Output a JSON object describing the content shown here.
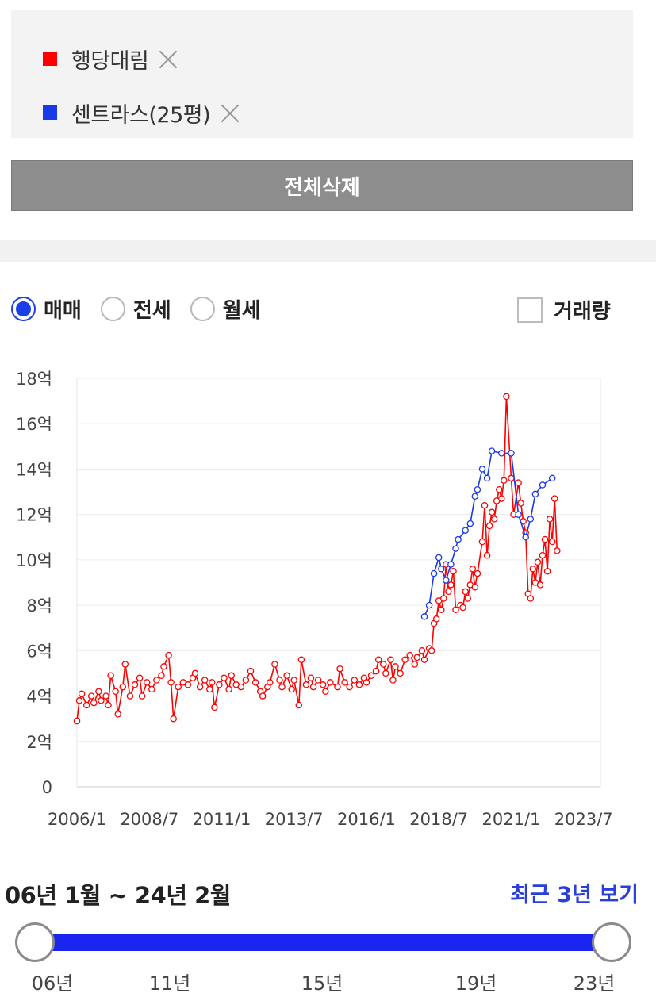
{
  "legend": {
    "items": [
      {
        "label": "행당대림",
        "color": "#ff0000"
      },
      {
        "label": "센트라스(25평)",
        "color": "#1a3ae8"
      }
    ]
  },
  "delete_all_label": "전체삭제",
  "trade_types": [
    {
      "label": "매매",
      "selected": true
    },
    {
      "label": "전세",
      "selected": false
    },
    {
      "label": "월세",
      "selected": false
    }
  ],
  "volume_label": "거래량",
  "volume_checked": false,
  "chart_data": {
    "type": "line",
    "title": "",
    "xlabel": "",
    "ylabel": "",
    "x_range": [
      "2006-01",
      "2024-02"
    ],
    "x_ticks": [
      "2006/1",
      "2008/7",
      "2011/1",
      "2013/7",
      "2016/1",
      "2018/7",
      "2021/1",
      "2023/7"
    ],
    "ylim": [
      0,
      18
    ],
    "y_ticks": [
      "0",
      "2억",
      "4억",
      "6억",
      "8억",
      "10억",
      "12억",
      "14억",
      "16억",
      "18억"
    ],
    "grid": true,
    "series": [
      {
        "name": "행당대림",
        "color": "#ff0000",
        "points": [
          [
            "2006-01",
            2.9
          ],
          [
            "2006-02",
            3.8
          ],
          [
            "2006-03",
            4.1
          ],
          [
            "2006-05",
            3.6
          ],
          [
            "2006-07",
            4.0
          ],
          [
            "2006-08",
            3.7
          ],
          [
            "2006-10",
            4.2
          ],
          [
            "2006-11",
            3.8
          ],
          [
            "2007-01",
            4.0
          ],
          [
            "2007-02",
            3.6
          ],
          [
            "2007-03",
            4.9
          ],
          [
            "2007-05",
            4.2
          ],
          [
            "2007-06",
            3.2
          ],
          [
            "2007-08",
            4.4
          ],
          [
            "2007-09",
            5.4
          ],
          [
            "2007-11",
            4.0
          ],
          [
            "2008-01",
            4.5
          ],
          [
            "2008-03",
            4.8
          ],
          [
            "2008-04",
            4.0
          ],
          [
            "2008-06",
            4.6
          ],
          [
            "2008-08",
            4.3
          ],
          [
            "2008-10",
            4.7
          ],
          [
            "2008-12",
            4.9
          ],
          [
            "2009-01",
            5.3
          ],
          [
            "2009-03",
            5.8
          ],
          [
            "2009-04",
            4.6
          ],
          [
            "2009-05",
            3.0
          ],
          [
            "2009-07",
            4.4
          ],
          [
            "2009-09",
            4.6
          ],
          [
            "2009-11",
            4.5
          ],
          [
            "2010-01",
            4.8
          ],
          [
            "2010-02",
            5.0
          ],
          [
            "2010-04",
            4.4
          ],
          [
            "2010-06",
            4.7
          ],
          [
            "2010-08",
            4.3
          ],
          [
            "2010-09",
            4.6
          ],
          [
            "2010-10",
            3.5
          ],
          [
            "2010-12",
            4.5
          ],
          [
            "2011-02",
            4.8
          ],
          [
            "2011-04",
            4.3
          ],
          [
            "2011-05",
            4.9
          ],
          [
            "2011-07",
            4.5
          ],
          [
            "2011-09",
            4.4
          ],
          [
            "2011-11",
            4.7
          ],
          [
            "2012-01",
            5.1
          ],
          [
            "2012-03",
            4.6
          ],
          [
            "2012-05",
            4.2
          ],
          [
            "2012-06",
            4.0
          ],
          [
            "2012-08",
            4.4
          ],
          [
            "2012-09",
            4.6
          ],
          [
            "2012-11",
            5.4
          ],
          [
            "2013-01",
            4.7
          ],
          [
            "2013-02",
            4.4
          ],
          [
            "2013-04",
            4.9
          ],
          [
            "2013-06",
            4.3
          ],
          [
            "2013-07",
            4.7
          ],
          [
            "2013-09",
            3.6
          ],
          [
            "2013-10",
            5.6
          ],
          [
            "2013-12",
            4.5
          ],
          [
            "2014-02",
            4.8
          ],
          [
            "2014-03",
            4.4
          ],
          [
            "2014-05",
            4.7
          ],
          [
            "2014-07",
            4.5
          ],
          [
            "2014-08",
            4.2
          ],
          [
            "2014-10",
            4.6
          ],
          [
            "2015-01",
            4.4
          ],
          [
            "2015-02",
            5.2
          ],
          [
            "2015-04",
            4.6
          ],
          [
            "2015-06",
            4.4
          ],
          [
            "2015-08",
            4.7
          ],
          [
            "2015-10",
            4.5
          ],
          [
            "2015-12",
            4.8
          ],
          [
            "2016-01",
            4.6
          ],
          [
            "2016-03",
            4.9
          ],
          [
            "2016-05",
            5.1
          ],
          [
            "2016-06",
            5.6
          ],
          [
            "2016-08",
            5.4
          ],
          [
            "2016-09",
            5.0
          ],
          [
            "2016-11",
            5.6
          ],
          [
            "2016-12",
            4.7
          ],
          [
            "2017-01",
            5.3
          ],
          [
            "2017-03",
            5.0
          ],
          [
            "2017-05",
            5.6
          ],
          [
            "2017-07",
            5.8
          ],
          [
            "2017-09",
            5.4
          ],
          [
            "2017-10",
            5.7
          ],
          [
            "2017-12",
            6.0
          ],
          [
            "2018-01",
            5.6
          ],
          [
            "2018-03",
            6.1
          ],
          [
            "2018-04",
            6.0
          ],
          [
            "2018-05",
            7.2
          ],
          [
            "2018-06",
            7.4
          ],
          [
            "2018-07",
            8.2
          ],
          [
            "2018-08",
            7.8
          ],
          [
            "2018-09",
            8.3
          ],
          [
            "2018-10",
            9.8
          ],
          [
            "2018-11",
            8.6
          ],
          [
            "2018-12",
            8.9
          ],
          [
            "2019-01",
            9.5
          ],
          [
            "2019-02",
            7.8
          ],
          [
            "2019-04",
            8.0
          ],
          [
            "2019-05",
            7.9
          ],
          [
            "2019-06",
            8.6
          ],
          [
            "2019-07",
            8.3
          ],
          [
            "2019-08",
            8.9
          ],
          [
            "2019-09",
            9.6
          ],
          [
            "2019-10",
            8.8
          ],
          [
            "2019-11",
            9.4
          ],
          [
            "2020-01",
            10.8
          ],
          [
            "2020-02",
            12.4
          ],
          [
            "2020-03",
            10.2
          ],
          [
            "2020-04",
            11.5
          ],
          [
            "2020-05",
            12.1
          ],
          [
            "2020-06",
            11.8
          ],
          [
            "2020-07",
            12.6
          ],
          [
            "2020-08",
            13.1
          ],
          [
            "2020-09",
            12.7
          ],
          [
            "2020-10",
            13.5
          ],
          [
            "2020-11",
            17.2
          ],
          [
            "2021-01",
            13.6
          ],
          [
            "2021-02",
            12.0
          ],
          [
            "2021-04",
            13.4
          ],
          [
            "2021-05",
            12.5
          ],
          [
            "2021-06",
            11.7
          ],
          [
            "2021-07",
            11.2
          ],
          [
            "2021-08",
            8.5
          ],
          [
            "2021-09",
            8.3
          ],
          [
            "2021-10",
            9.6
          ],
          [
            "2021-11",
            9.0
          ],
          [
            "2021-12",
            9.9
          ],
          [
            "2022-01",
            8.9
          ],
          [
            "2022-02",
            10.2
          ],
          [
            "2022-03",
            10.9
          ],
          [
            "2022-04",
            9.5
          ],
          [
            "2022-05",
            11.8
          ],
          [
            "2022-06",
            10.8
          ],
          [
            "2022-07",
            12.7
          ],
          [
            "2022-08",
            10.4
          ]
        ]
      },
      {
        "name": "센트라스(25평)",
        "color": "#1a3ae8",
        "points": [
          [
            "2018-01",
            7.5
          ],
          [
            "2018-03",
            8.0
          ],
          [
            "2018-05",
            9.4
          ],
          [
            "2018-07",
            10.1
          ],
          [
            "2018-08",
            9.6
          ],
          [
            "2018-10",
            9.1
          ],
          [
            "2018-12",
            9.8
          ],
          [
            "2019-02",
            10.5
          ],
          [
            "2019-03",
            10.9
          ],
          [
            "2019-06",
            11.3
          ],
          [
            "2019-08",
            11.6
          ],
          [
            "2019-10",
            12.8
          ],
          [
            "2019-11",
            13.1
          ],
          [
            "2020-01",
            14.0
          ],
          [
            "2020-03",
            13.6
          ],
          [
            "2020-05",
            14.8
          ],
          [
            "2020-09",
            14.7
          ],
          [
            "2021-01",
            14.7
          ],
          [
            "2021-04",
            12.0
          ],
          [
            "2021-07",
            11.0
          ],
          [
            "2021-09",
            11.8
          ],
          [
            "2021-11",
            12.9
          ],
          [
            "2022-02",
            13.3
          ],
          [
            "2022-06",
            13.6
          ]
        ]
      }
    ]
  },
  "range_text": "06년 1월 ~ 24년 2월",
  "recent_link": "최근 3년 보기",
  "slider_ticks": [
    "06년",
    "11년",
    "15년",
    "19년",
    "23년"
  ]
}
